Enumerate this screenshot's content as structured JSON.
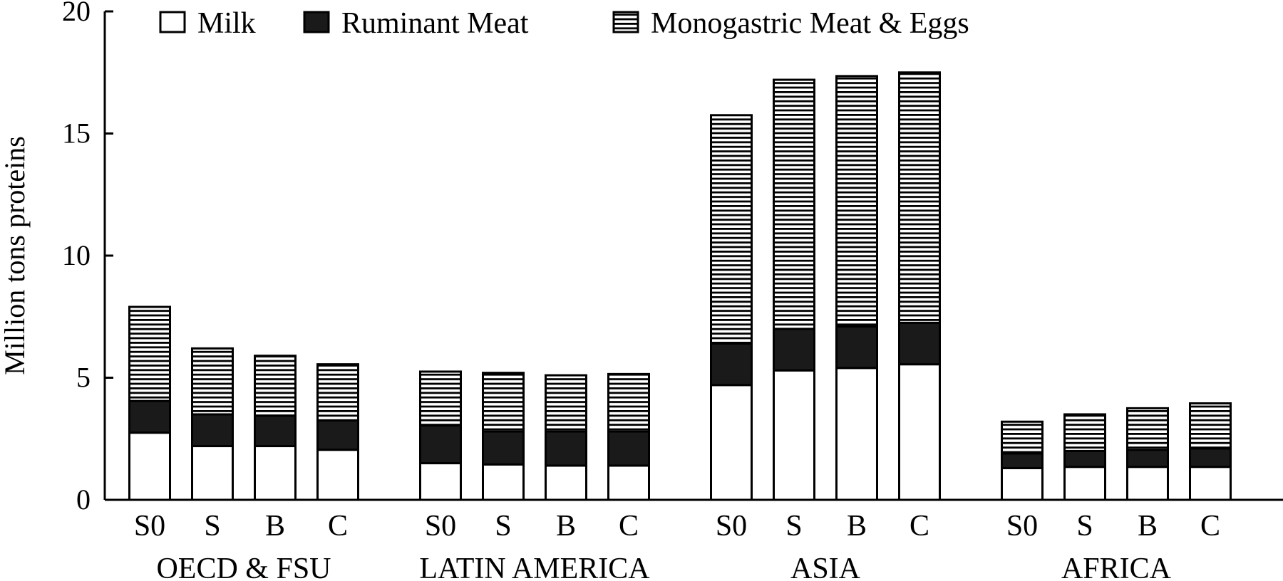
{
  "chart_data": {
    "type": "bar",
    "stacked": true,
    "title": "",
    "xlabel": "",
    "ylabel": "Million tons proteins",
    "ylim": [
      0,
      20
    ],
    "yticks": [
      0,
      5,
      10,
      15,
      20
    ],
    "grid": false,
    "legend_position": "top",
    "groups": [
      {
        "name": "OECD & FSU",
        "categories": [
          "S0",
          "S",
          "B",
          "C"
        ]
      },
      {
        "name": "LATIN AMERICA",
        "categories": [
          "S0",
          "S",
          "B",
          "C"
        ]
      },
      {
        "name": "ASIA",
        "categories": [
          "S0",
          "S",
          "B",
          "C"
        ]
      },
      {
        "name": "AFRICA",
        "categories": [
          "S0",
          "S",
          "B",
          "C"
        ]
      }
    ],
    "series": [
      {
        "name": "Milk",
        "fill": "white",
        "values": [
          2.75,
          2.2,
          2.2,
          2.05,
          1.5,
          1.45,
          1.4,
          1.4,
          4.7,
          5.3,
          5.4,
          5.55,
          1.3,
          1.35,
          1.35,
          1.35
        ]
      },
      {
        "name": "Ruminant Meat",
        "fill": "solid",
        "values": [
          1.3,
          1.3,
          1.25,
          1.2,
          1.55,
          1.35,
          1.4,
          1.4,
          1.7,
          1.7,
          1.7,
          1.7,
          0.6,
          0.65,
          0.7,
          0.75
        ]
      },
      {
        "name": "Monogastric Meat & Eggs",
        "fill": "hatched",
        "values": [
          3.85,
          2.7,
          2.45,
          2.3,
          2.2,
          2.4,
          2.3,
          2.35,
          9.35,
          10.2,
          10.25,
          10.25,
          1.3,
          1.5,
          1.7,
          1.85
        ]
      }
    ]
  }
}
